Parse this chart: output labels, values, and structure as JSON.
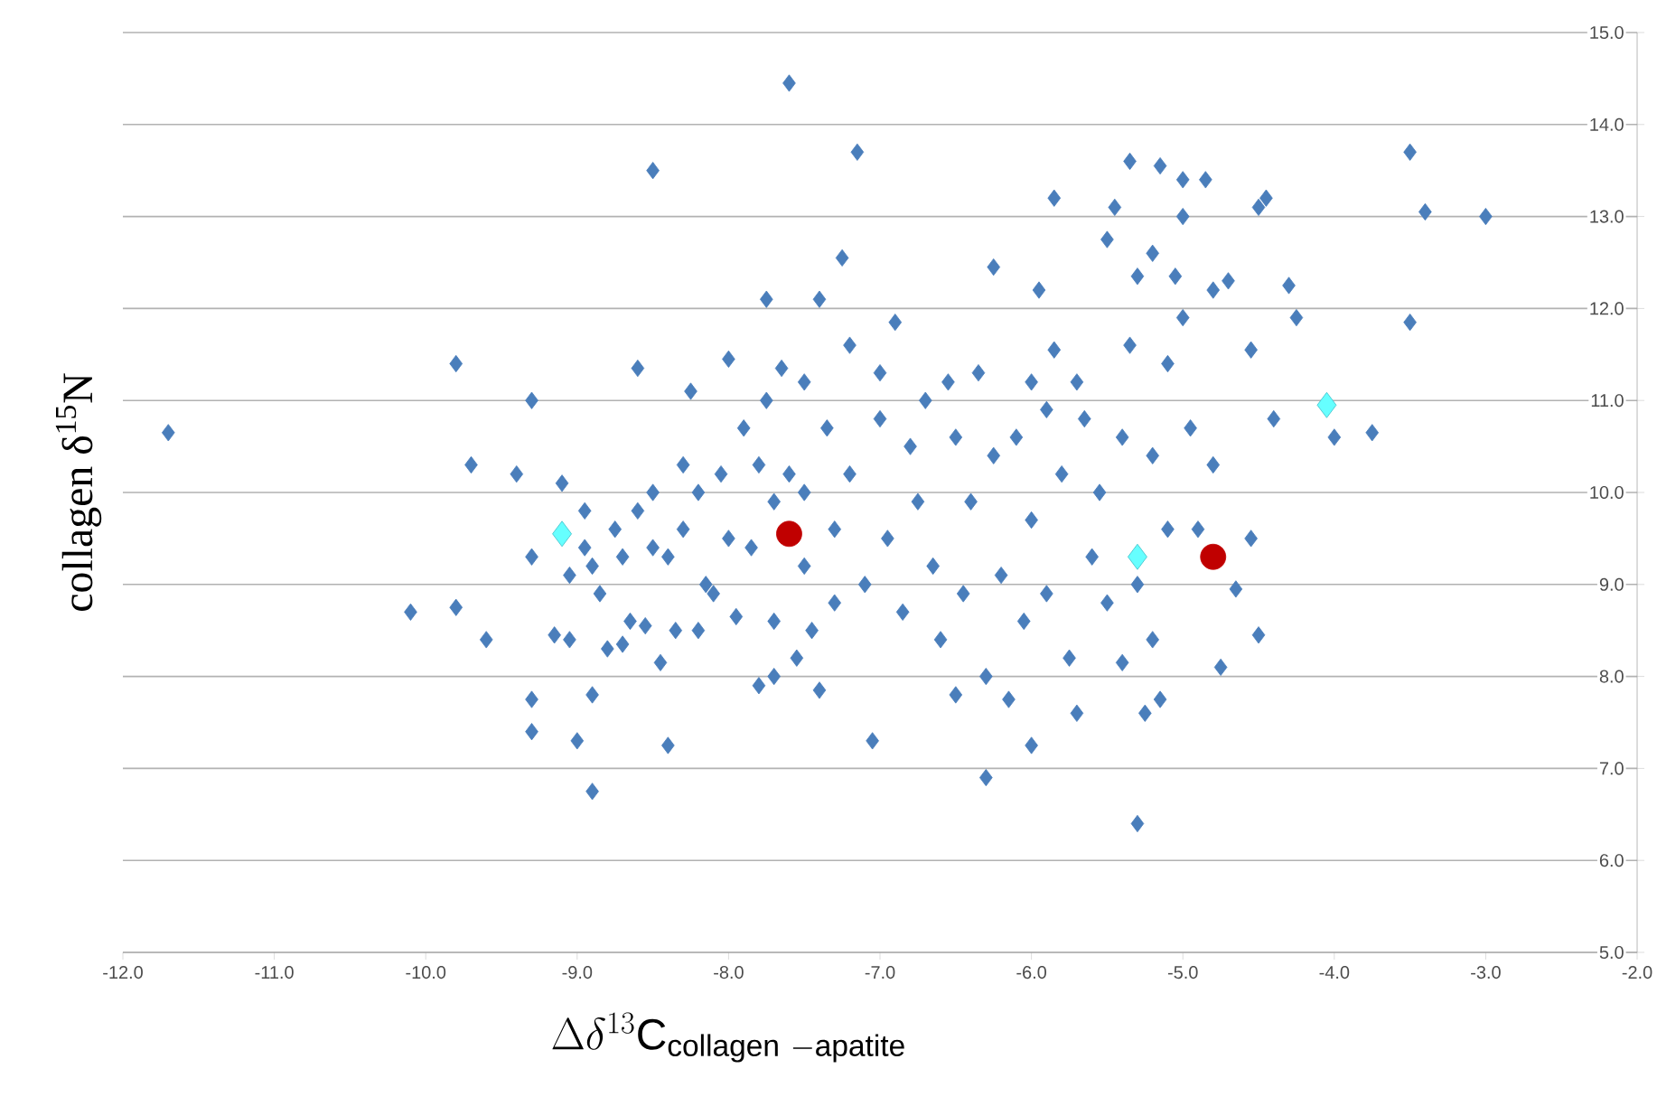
{
  "chart_data": {
    "type": "scatter",
    "xlabel": "\\Delta\\delta^{13}\\mathrm{C}_{\\mathrm{collagen\\ -apatite}}",
    "ylabel": "collagen δ$^{15}$N",
    "xlim": [
      -12,
      -2
    ],
    "ylim": [
      5,
      15
    ],
    "xticks": [
      {
        "value": -12,
        "label": "-12.0"
      },
      {
        "value": -11,
        "label": "-11.0"
      },
      {
        "value": -10,
        "label": "-10.0"
      },
      {
        "value": -9,
        "label": "-9.0"
      },
      {
        "value": -8,
        "label": "-8.0"
      },
      {
        "value": -7,
        "label": "-7.0"
      },
      {
        "value": -6,
        "label": "-6.0"
      },
      {
        "value": -5,
        "label": "-5.0"
      },
      {
        "value": -4,
        "label": "-4.0"
      },
      {
        "value": -3,
        "label": "-3.0"
      },
      {
        "value": -2,
        "label": "-2.0"
      }
    ],
    "yticks": [
      {
        "value": 5,
        "label": "5.0"
      },
      {
        "value": 6,
        "label": "6.0"
      },
      {
        "value": 7,
        "label": "7.0"
      },
      {
        "value": 8,
        "label": "8.0"
      },
      {
        "value": 9,
        "label": "9.0"
      },
      {
        "value": 10,
        "label": "10.0"
      },
      {
        "value": 11,
        "label": "11.0"
      },
      {
        "value": 12,
        "label": "12.0"
      },
      {
        "value": 13,
        "label": "13.0"
      },
      {
        "value": 14,
        "label": "14.0"
      },
      {
        "value": 15,
        "label": "15.0"
      }
    ],
    "grid": "y",
    "series": [
      {
        "color": "#4a7ebb",
        "marker": "diamond",
        "x": [
          -11.7,
          -10.1,
          -9.8,
          -9.6,
          -9.8,
          -9.7,
          -9.4,
          -9.3,
          -9.3,
          -9.3,
          -9.3,
          -9.1,
          -9.15,
          -9.05,
          -9.05,
          -9.0,
          -8.95,
          -8.95,
          -8.9,
          -8.85,
          -8.9,
          -8.9,
          -8.8,
          -8.75,
          -8.7,
          -8.7,
          -8.65,
          -8.6,
          -8.6,
          -8.55,
          -8.5,
          -8.5,
          -8.5,
          -8.45,
          -8.4,
          -8.4,
          -8.35,
          -8.3,
          -8.3,
          -8.25,
          -8.2,
          -8.2,
          -8.15,
          -8.1,
          -8.0,
          -8.05,
          -8.0,
          -7.95,
          -7.9,
          -7.85,
          -7.8,
          -7.8,
          -7.75,
          -7.75,
          -7.7,
          -7.7,
          -7.7,
          -7.65,
          -7.6,
          -7.6,
          -7.55,
          -7.5,
          -7.5,
          -7.5,
          -7.45,
          -7.4,
          -7.4,
          -7.35,
          -7.3,
          -7.3,
          -7.25,
          -7.2,
          -7.2,
          -7.15,
          -7.1,
          -7.05,
          -7.0,
          -7.0,
          -6.95,
          -6.9,
          -6.85,
          -6.8,
          -6.75,
          -6.7,
          -6.65,
          -6.6,
          -6.55,
          -6.5,
          -6.5,
          -6.45,
          -6.4,
          -6.35,
          -6.3,
          -6.3,
          -6.25,
          -6.25,
          -6.2,
          -6.15,
          -6.1,
          -6.05,
          -6.0,
          -6.0,
          -6.0,
          -5.95,
          -5.9,
          -5.9,
          -5.85,
          -5.85,
          -5.8,
          -5.75,
          -5.7,
          -5.7,
          -5.65,
          -5.6,
          -5.55,
          -5.5,
          -5.5,
          -5.45,
          -5.4,
          -5.4,
          -5.35,
          -5.35,
          -5.3,
          -5.3,
          -5.3,
          -5.25,
          -5.2,
          -5.2,
          -5.2,
          -5.15,
          -5.15,
          -5.1,
          -5.1,
          -5.05,
          -5.0,
          -5.0,
          -5.0,
          -4.95,
          -4.9,
          -4.85,
          -4.8,
          -4.8,
          -4.75,
          -4.7,
          -4.65,
          -4.55,
          -4.55,
          -4.5,
          -4.5,
          -4.45,
          -4.4,
          -4.3,
          -4.25,
          -4.0,
          -3.75,
          -3.5,
          -3.5,
          -3.4,
          -3.0
        ],
        "values": [
          10.65,
          8.7,
          8.75,
          8.4,
          11.4,
          10.3,
          10.2,
          11.0,
          9.3,
          7.75,
          7.4,
          10.1,
          8.45,
          9.1,
          8.4,
          7.3,
          9.8,
          9.4,
          9.2,
          8.9,
          6.75,
          7.8,
          8.3,
          9.6,
          9.3,
          8.35,
          8.6,
          11.35,
          9.8,
          8.55,
          13.5,
          10.0,
          9.4,
          8.15,
          9.3,
          7.25,
          8.5,
          10.3,
          9.6,
          11.1,
          10.0,
          8.5,
          9.0,
          8.9,
          11.45,
          10.2,
          9.5,
          8.65,
          10.7,
          9.4,
          10.3,
          7.9,
          11.0,
          12.1,
          9.9,
          8.6,
          8.0,
          11.35,
          14.45,
          10.2,
          8.2,
          11.2,
          10.0,
          9.2,
          8.5,
          12.1,
          7.85,
          10.7,
          9.6,
          8.8,
          12.55,
          11.6,
          10.2,
          13.7,
          9.0,
          7.3,
          11.3,
          10.8,
          9.5,
          11.85,
          8.7,
          10.5,
          9.9,
          11.0,
          9.2,
          8.4,
          11.2,
          10.6,
          7.8,
          8.9,
          9.9,
          11.3,
          8.0,
          6.9,
          10.4,
          12.45,
          9.1,
          7.75,
          10.6,
          8.6,
          11.2,
          9.7,
          7.25,
          12.2,
          10.9,
          8.9,
          13.2,
          11.55,
          10.2,
          8.2,
          7.6,
          11.2,
          10.8,
          9.3,
          10.0,
          12.75,
          8.8,
          13.1,
          10.6,
          8.15,
          13.6,
          11.6,
          12.35,
          9.0,
          6.4,
          7.6,
          12.6,
          10.4,
          8.4,
          13.55,
          7.75,
          11.4,
          9.6,
          12.35,
          13.0,
          13.4,
          11.9,
          10.7,
          9.6,
          13.4,
          12.2,
          10.3,
          8.1,
          12.3,
          8.95,
          9.5,
          11.55,
          8.45,
          13.1,
          13.2,
          10.8,
          12.25,
          11.9,
          10.6,
          10.65,
          13.7,
          11.85,
          13.05,
          13.0
        ]
      },
      {
        "color": "#66ffff",
        "marker": "diamond",
        "x": [
          -9.1,
          -5.3,
          -4.05
        ],
        "values": [
          9.55,
          9.3,
          10.95
        ]
      },
      {
        "color": "#c00000",
        "marker": "circle",
        "x": [
          -7.6,
          -4.8
        ],
        "values": [
          9.55,
          9.3
        ]
      }
    ]
  }
}
